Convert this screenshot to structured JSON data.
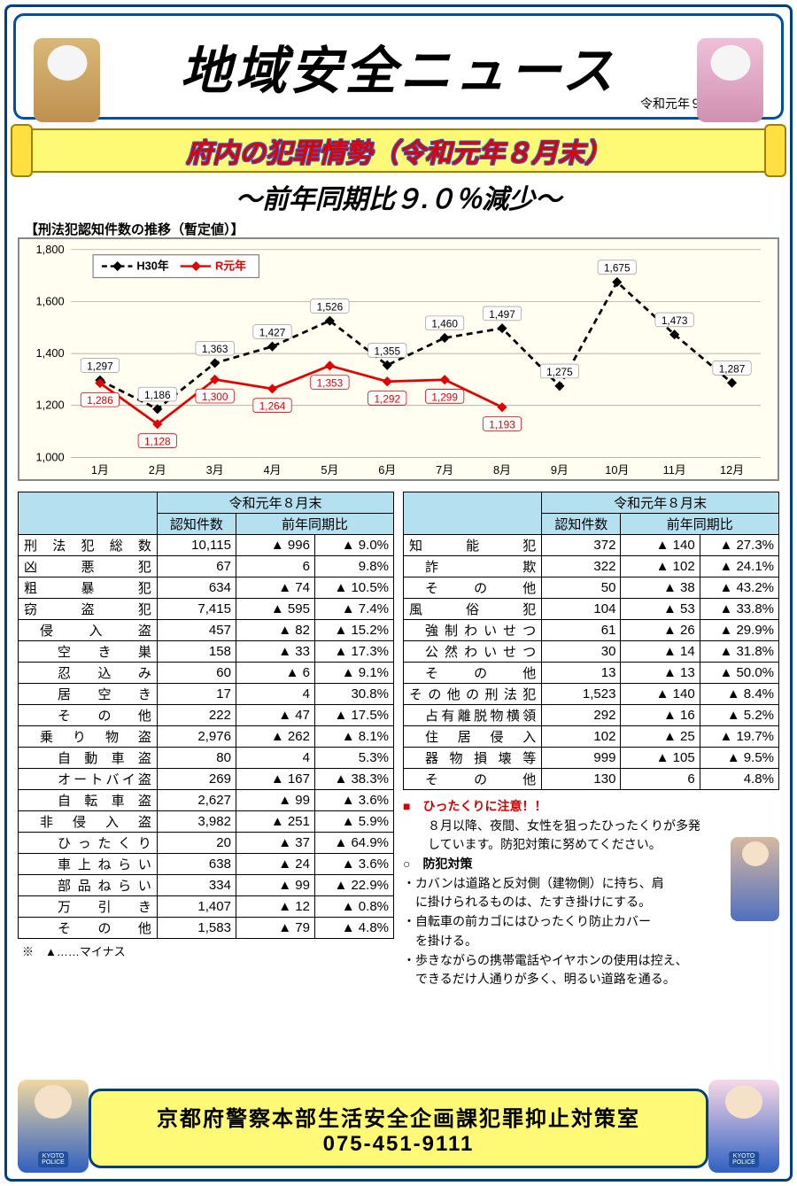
{
  "header": {
    "title": "地域安全ニュース",
    "date": "令和元年９月"
  },
  "banner": "府内の犯罪情勢（令和元年８月末）",
  "subtitle": "～前年同期比９.０％減少～",
  "chart": {
    "caption": "【刑法犯認知件数の推移（暫定値）】",
    "legend_h30": "H30年",
    "legend_r1": "R元年",
    "background": "#fffef0",
    "h30_color": "#000000",
    "r1_color": "#e00000",
    "months": [
      "1月",
      "2月",
      "3月",
      "4月",
      "5月",
      "6月",
      "7月",
      "8月",
      "9月",
      "10月",
      "11月",
      "12月"
    ],
    "y_min": 1000,
    "y_max": 1800,
    "y_step": 200,
    "h30_values": [
      1297,
      1186,
      1363,
      1427,
      1526,
      1355,
      1460,
      1497,
      1275,
      1675,
      1473,
      1287
    ],
    "r1_values": [
      1286,
      1128,
      1300,
      1264,
      1353,
      1292,
      1299,
      1193
    ]
  },
  "tables": {
    "header_period": "令和元年８月末",
    "col_count": "認知件数",
    "col_diff": "前年同期比",
    "left_rows": [
      {
        "label": "刑 法 犯 総 数",
        "indent": 0,
        "count": "10,115",
        "diff": "▲ 996",
        "pct": "▲ 9.0%"
      },
      {
        "label": "凶　　悪　　犯",
        "indent": 0,
        "count": "67",
        "diff": "6",
        "pct": "9.8%"
      },
      {
        "label": "粗　　暴　　犯",
        "indent": 0,
        "count": "634",
        "diff": "▲ 74",
        "pct": "▲ 10.5%"
      },
      {
        "label": "窃　　盗　　犯",
        "indent": 0,
        "count": "7,415",
        "diff": "▲ 595",
        "pct": "▲ 7.4%"
      },
      {
        "label": "侵　入　盗",
        "indent": 1,
        "count": "457",
        "diff": "▲ 82",
        "pct": "▲ 15.2%"
      },
      {
        "label": "空　き　巣",
        "indent": 2,
        "count": "158",
        "diff": "▲ 33",
        "pct": "▲ 17.3%"
      },
      {
        "label": "忍　込　み",
        "indent": 2,
        "count": "60",
        "diff": "▲ 6",
        "pct": "▲ 9.1%"
      },
      {
        "label": "居　空　き",
        "indent": 2,
        "count": "17",
        "diff": "4",
        "pct": "30.8%"
      },
      {
        "label": "そ　の　他",
        "indent": 2,
        "count": "222",
        "diff": "▲ 47",
        "pct": "▲ 17.5%"
      },
      {
        "label": "乗 り 物 盗",
        "indent": 1,
        "count": "2,976",
        "diff": "▲ 262",
        "pct": "▲ 8.1%"
      },
      {
        "label": "自 動 車 盗",
        "indent": 2,
        "count": "80",
        "diff": "4",
        "pct": "5.3%"
      },
      {
        "label": "オートバイ盗",
        "indent": 2,
        "count": "269",
        "diff": "▲ 167",
        "pct": "▲ 38.3%"
      },
      {
        "label": "自 転 車 盗",
        "indent": 2,
        "count": "2,627",
        "diff": "▲ 99",
        "pct": "▲ 3.6%"
      },
      {
        "label": "非 侵 入 盗",
        "indent": 1,
        "count": "3,982",
        "diff": "▲ 251",
        "pct": "▲ 5.9%"
      },
      {
        "label": "ひったくり",
        "indent": 2,
        "count": "20",
        "diff": "▲ 37",
        "pct": "▲ 64.9%"
      },
      {
        "label": "車上ねらい",
        "indent": 2,
        "count": "638",
        "diff": "▲ 24",
        "pct": "▲ 3.6%"
      },
      {
        "label": "部品ねらい",
        "indent": 2,
        "count": "334",
        "diff": "▲ 99",
        "pct": "▲ 22.9%"
      },
      {
        "label": "万　引　き",
        "indent": 2,
        "count": "1,407",
        "diff": "▲ 12",
        "pct": "▲ 0.8%"
      },
      {
        "label": "そ　の　他",
        "indent": 2,
        "count": "1,583",
        "diff": "▲ 79",
        "pct": "▲ 4.8%"
      }
    ],
    "right_rows": [
      {
        "label": "知　　能　　犯",
        "indent": 0,
        "count": "372",
        "diff": "▲ 140",
        "pct": "▲ 27.3%"
      },
      {
        "label": "詐　　　欺",
        "indent": 1,
        "count": "322",
        "diff": "▲ 102",
        "pct": "▲ 24.1%"
      },
      {
        "label": "そ　の　他",
        "indent": 1,
        "count": "50",
        "diff": "▲ 38",
        "pct": "▲ 43.2%"
      },
      {
        "label": "風　　俗　　犯",
        "indent": 0,
        "count": "104",
        "diff": "▲ 53",
        "pct": "▲ 33.8%"
      },
      {
        "label": "強制わいせつ",
        "indent": 1,
        "count": "61",
        "diff": "▲ 26",
        "pct": "▲ 29.9%"
      },
      {
        "label": "公然わいせつ",
        "indent": 1,
        "count": "30",
        "diff": "▲ 14",
        "pct": "▲ 31.8%"
      },
      {
        "label": "そ　の　他",
        "indent": 1,
        "count": "13",
        "diff": "▲ 13",
        "pct": "▲ 50.0%"
      },
      {
        "label": "その他の刑法犯",
        "indent": 0,
        "count": "1,523",
        "diff": "▲ 140",
        "pct": "▲ 8.4%"
      },
      {
        "label": "占有離脱物横領",
        "indent": 1,
        "count": "292",
        "diff": "▲ 16",
        "pct": "▲ 5.2%"
      },
      {
        "label": "住 居 侵 入",
        "indent": 1,
        "count": "102",
        "diff": "▲ 25",
        "pct": "▲ 19.7%"
      },
      {
        "label": "器 物 損 壊 等",
        "indent": 1,
        "count": "999",
        "diff": "▲ 105",
        "pct": "▲ 9.5%"
      },
      {
        "label": "そ　の　他",
        "indent": 1,
        "count": "130",
        "diff": "6",
        "pct": "4.8%"
      }
    ],
    "note": "※　▲……マイナス"
  },
  "warning": {
    "title": "■　ひったくりに注意！！",
    "body": "　　８月以降、夜間、女性を狙ったひったくりが多発\n　　しています。防犯対策に努めてください。",
    "sub": "○　防犯対策",
    "tips": [
      "・カバンは道路と反対側（建物側）に持ち、肩\n　に掛けられるものは、たすき掛けにする。",
      "・自転車の前カゴにはひったくり防止カバー\n　を掛ける。",
      "・歩きながらの携帯電話やイヤホンの使用は控え、\n　できるだけ人通りが多く、明るい道路を通る。"
    ]
  },
  "footer": {
    "org": "京都府警察本部生活安全企画課犯罪抑止対策室",
    "tel": "075-451-9111"
  }
}
